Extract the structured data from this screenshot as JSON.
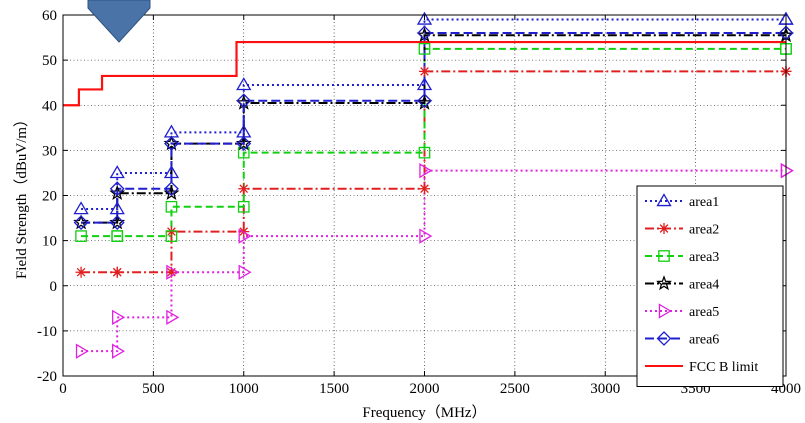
{
  "chart_data": {
    "type": "line",
    "xlabel": "Frequency（MHz）",
    "ylabel": "Field Strength（dBuV/m）",
    "xlim": [
      0,
      4000
    ],
    "ylim": [
      -20,
      60
    ],
    "xticks": [
      0,
      500,
      1000,
      1500,
      2000,
      2500,
      3000,
      3500,
      4000
    ],
    "yticks": [
      -20,
      -10,
      0,
      10,
      20,
      30,
      40,
      50,
      60
    ],
    "grid": true,
    "legend_position": "bottom-right",
    "x": [
      100,
      300,
      600,
      1000,
      2000,
      4000
    ],
    "series": [
      {
        "name": "area1",
        "values": [
          17,
          25,
          34,
          44.5,
          59,
          59
        ],
        "color": "#1f1fd0",
        "dash": "2,3",
        "marker": "triangle-up"
      },
      {
        "name": "area2",
        "values": [
          3,
          3,
          12,
          21.5,
          47.5,
          47.5
        ],
        "color": "#e02020",
        "dash": "9,3,2,3",
        "marker": "asterisk"
      },
      {
        "name": "area3",
        "values": [
          11,
          11,
          17.5,
          29.5,
          52.5,
          52.5
        ],
        "color": "#10d010",
        "dash": "7,4",
        "marker": "square"
      },
      {
        "name": "area4",
        "values": [
          14,
          20.5,
          31.5,
          40.5,
          55.5,
          55.5
        ],
        "color": "#000000",
        "dash": "9,3,2,3",
        "marker": "star"
      },
      {
        "name": "area5",
        "values": [
          -14.5,
          -7,
          3,
          11,
          25.5,
          25.5
        ],
        "color": "#e020e0",
        "dash": "2,3",
        "marker": "triangle-right"
      },
      {
        "name": "area6",
        "values": [
          14,
          21.5,
          31.5,
          41,
          56,
          56
        ],
        "color": "#1f1fd0",
        "dash": "9,4",
        "marker": "diamond"
      }
    ],
    "limit_line": {
      "name": "FCC B limit",
      "color": "#ff1010",
      "steps": [
        [
          0,
          40
        ],
        [
          88,
          43.5
        ],
        [
          216,
          46.5
        ],
        [
          960,
          54
        ],
        [
          4000,
          54
        ]
      ]
    }
  }
}
